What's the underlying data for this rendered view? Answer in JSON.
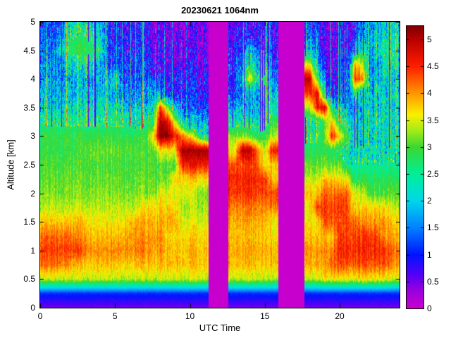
{
  "figure": {
    "title": "20230621 1064nm"
  },
  "chart_data": {
    "type": "heatmap",
    "title": "20230621 1064nm",
    "xlabel": "UTC Time",
    "ylabel": "Altitude [km]",
    "x_range": [
      0,
      24
    ],
    "y_range": [
      0,
      5
    ],
    "x_ticks": [
      0,
      5,
      10,
      15,
      20
    ],
    "x_tick_labels": [
      "0",
      "5",
      "10",
      "15",
      "20"
    ],
    "y_ticks": [
      0,
      0.5,
      1,
      1.5,
      2,
      2.5,
      3,
      3.5,
      4,
      4.5,
      5
    ],
    "y_tick_labels": [
      "0",
      "0.5",
      "1",
      "1.5",
      "2",
      "2.5",
      "3",
      "3.5",
      "4",
      "4.5",
      "5"
    ],
    "colorbar": {
      "range": [
        0,
        5.25
      ],
      "ticks": [
        0,
        0.5,
        1,
        1.5,
        2,
        2.5,
        3,
        3.5,
        4,
        4.5,
        5
      ],
      "tick_labels": [
        "0",
        "0.5",
        "1",
        "1.5",
        "2",
        "2.5",
        "3",
        "3.5",
        "4",
        "4.5",
        "5"
      ],
      "position": "right"
    },
    "colormap": {
      "stops": [
        [
          0.0,
          [
            200,
            0,
            205
          ]
        ],
        [
          0.3,
          [
            160,
            0,
            220
          ]
        ],
        [
          0.6,
          [
            90,
            0,
            245
          ]
        ],
        [
          1.0,
          [
            0,
            20,
            255
          ]
        ],
        [
          1.5,
          [
            0,
            130,
            255
          ]
        ],
        [
          2.0,
          [
            0,
            215,
            235
          ]
        ],
        [
          2.5,
          [
            0,
            240,
            150
          ]
        ],
        [
          3.0,
          [
            60,
            215,
            50
          ]
        ],
        [
          3.3,
          [
            160,
            235,
            25
          ]
        ],
        [
          3.6,
          [
            250,
            240,
            0
          ]
        ],
        [
          4.0,
          [
            255,
            150,
            0
          ]
        ],
        [
          4.5,
          [
            255,
            30,
            0
          ]
        ],
        [
          5.0,
          [
            185,
            0,
            0
          ]
        ],
        [
          5.25,
          [
            125,
            0,
            0
          ]
        ]
      ]
    },
    "data_gaps_utc": [
      [
        11.25,
        12.55
      ],
      [
        15.9,
        17.65
      ]
    ],
    "grid": {
      "x_utc": [
        0,
        0.5,
        1,
        1.5,
        2,
        2.5,
        3,
        3.5,
        4,
        4.5,
        5,
        5.5,
        6,
        6.5,
        7,
        7.5,
        8,
        8.5,
        9,
        9.5,
        10,
        10.5,
        11,
        11.5,
        12,
        12.5,
        13,
        13.5,
        14,
        14.5,
        15,
        15.5,
        16,
        16.5,
        17,
        17.5,
        18,
        18.5,
        19,
        19.5,
        20,
        20.5,
        21,
        21.5,
        22,
        22.5,
        23,
        23.5,
        24
      ],
      "altitude_km": [
        0,
        0.25,
        0.5,
        0.75,
        1,
        1.25,
        1.5,
        1.75,
        2,
        2.25,
        2.5,
        2.75,
        3,
        3.25,
        3.5,
        3.75,
        4,
        4.25,
        4.5,
        4.75,
        5
      ],
      "values": [
        [
          0.5,
          0.5,
          0.5,
          0.5,
          0.5,
          0.5,
          0.5,
          0.5,
          0.5,
          0.5,
          0.5,
          0.5,
          0.5,
          0.5,
          0.5,
          0.5,
          0.5,
          0.5,
          0.5,
          0.5,
          0.5,
          0.5,
          0.5,
          0,
          0,
          0,
          0.5,
          0.5,
          0.5,
          0.5,
          0.5,
          0.5,
          0,
          0,
          0,
          0,
          0.5,
          0.5,
          0.5,
          0.5,
          0.5,
          0.5,
          0.5,
          0.5,
          0.5,
          0.5,
          0.5,
          0.5,
          0.5
        ],
        [
          1.1,
          1.1,
          1.1,
          1.1,
          1.1,
          1.1,
          1.1,
          1.1,
          1.1,
          1.1,
          1.1,
          1.1,
          1.1,
          1.1,
          1.1,
          1.1,
          1.1,
          1.1,
          1.1,
          1.1,
          1.1,
          1.1,
          1.1,
          0,
          0,
          0,
          1.1,
          1.1,
          1.1,
          1.1,
          1.1,
          1.1,
          0,
          0,
          0,
          0,
          1.1,
          1.1,
          1.1,
          1.1,
          1.1,
          1.1,
          1.1,
          1.1,
          1.1,
          1.1,
          1.1,
          1.1,
          1.1
        ],
        [
          3.4,
          3.4,
          3.4,
          3.4,
          3.4,
          3.4,
          3.4,
          3.4,
          3.4,
          3.4,
          3.4,
          3.4,
          3.4,
          3.4,
          3.4,
          3.4,
          3.4,
          3.4,
          3.4,
          3.4,
          3.4,
          3.4,
          3.4,
          0,
          0,
          0,
          3.4,
          3.4,
          3.4,
          3.4,
          3.4,
          3.4,
          0,
          0,
          0,
          0,
          3.4,
          3.4,
          3.6,
          3.6,
          3.6,
          3.6,
          3.6,
          3.6,
          3.6,
          3.6,
          3.6,
          3.4,
          3.4
        ],
        [
          4.2,
          4.2,
          4.2,
          4.1,
          4.0,
          3.8,
          3.8,
          3.8,
          3.8,
          3.8,
          3.8,
          3.8,
          3.8,
          3.8,
          3.8,
          3.8,
          3.8,
          3.8,
          3.8,
          3.8,
          3.8,
          3.8,
          3.8,
          0,
          0,
          0,
          3.8,
          3.8,
          3.8,
          3.8,
          3.8,
          3.8,
          0,
          0,
          0,
          0,
          3.9,
          3.9,
          3.9,
          4.3,
          4.3,
          4.3,
          4.3,
          4.3,
          4.3,
          4.3,
          4.3,
          4.0,
          3.9
        ],
        [
          4.4,
          4.4,
          4.4,
          4.4,
          4.4,
          4.4,
          4.2,
          4.0,
          4.0,
          4.0,
          4.1,
          4.1,
          4.1,
          4.1,
          4.1,
          4.0,
          4.0,
          3.8,
          3.8,
          3.8,
          3.8,
          3.8,
          3.8,
          0,
          0,
          0,
          3.9,
          3.9,
          3.9,
          3.9,
          3.9,
          3.9,
          0,
          0,
          0,
          0,
          4.0,
          4.0,
          4.0,
          4.1,
          4.5,
          4.5,
          4.5,
          4.5,
          4.5,
          4.5,
          4.5,
          4.2,
          4.0
        ],
        [
          4.2,
          4.2,
          4.2,
          4.2,
          4.2,
          4.0,
          4.0,
          3.8,
          3.8,
          3.8,
          3.8,
          3.9,
          4.0,
          4.0,
          4.0,
          4.0,
          4.0,
          3.7,
          3.7,
          3.7,
          3.7,
          3.7,
          3.7,
          0,
          0,
          0,
          3.8,
          3.8,
          3.8,
          3.8,
          3.8,
          3.7,
          0,
          0,
          0,
          0,
          3.8,
          3.8,
          3.8,
          3.8,
          4.4,
          4.4,
          4.4,
          4.4,
          4.4,
          4.4,
          4.0,
          3.9,
          3.8
        ],
        [
          3.8,
          3.8,
          3.8,
          3.8,
          3.8,
          3.8,
          3.8,
          3.6,
          3.6,
          3.6,
          3.6,
          3.6,
          3.9,
          3.9,
          3.9,
          3.9,
          3.9,
          3.9,
          3.9,
          3.5,
          3.5,
          3.5,
          3.5,
          0,
          0,
          0,
          3.9,
          3.9,
          3.9,
          3.9,
          3.9,
          3.6,
          0,
          0,
          0,
          0,
          3.6,
          3.6,
          4.3,
          4.3,
          4.3,
          4.3,
          4.3,
          4.0,
          4.0,
          4.0,
          4.0,
          3.7,
          3.7
        ],
        [
          3.4,
          3.4,
          3.4,
          3.4,
          3.4,
          3.4,
          3.4,
          3.4,
          3.4,
          3.4,
          3.4,
          3.4,
          3.4,
          3.4,
          3.7,
          3.7,
          3.7,
          3.7,
          3.7,
          3.3,
          3.3,
          3.3,
          3.3,
          0,
          0,
          0,
          4.1,
          4.1,
          4.1,
          4.1,
          4.1,
          4.1,
          0,
          0,
          0,
          0,
          3.5,
          4.4,
          4.4,
          4.4,
          4.4,
          4.4,
          3.7,
          3.7,
          3.7,
          3.7,
          3.7,
          3.4,
          3.4
        ],
        [
          3.2,
          3.2,
          3.2,
          3.2,
          3.2,
          3.2,
          3.2,
          3.2,
          3.2,
          3.2,
          3.2,
          3.2,
          3.2,
          3.2,
          3.2,
          3.2,
          3.5,
          3.5,
          3.5,
          3.5,
          3.5,
          3.2,
          3.2,
          0,
          0,
          0,
          4.4,
          4.4,
          4.4,
          4.4,
          4.4,
          4.4,
          0,
          0,
          0,
          0,
          3.8,
          3.8,
          4.2,
          4.2,
          4.2,
          4.2,
          3.6,
          3.4,
          3.0,
          3.0,
          3.0,
          3.0,
          3.0
        ],
        [
          3.1,
          3.1,
          3.1,
          3.1,
          3.1,
          3.1,
          3.1,
          3.1,
          3.1,
          3.1,
          3.1,
          3.1,
          3.1,
          3.1,
          3.1,
          3.1,
          3.1,
          3.1,
          3.7,
          3.7,
          3.7,
          3.7,
          3.7,
          0,
          0,
          0,
          4.5,
          4.5,
          4.5,
          4.5,
          4.5,
          3.8,
          0,
          0,
          0,
          0,
          3.4,
          3.4,
          3.8,
          3.8,
          3.6,
          3.6,
          2.8,
          2.8,
          2.8,
          2.8,
          2.8,
          2.8,
          2.8
        ],
        [
          3.0,
          3.0,
          3.0,
          3.0,
          3.0,
          3.0,
          3.0,
          3.0,
          3.0,
          3.0,
          3.0,
          3.0,
          3.0,
          3.0,
          3.0,
          3.0,
          3.0,
          3.0,
          3.0,
          4.6,
          4.6,
          4.6,
          4.6,
          0,
          0,
          0,
          4.3,
          4.3,
          4.3,
          4.3,
          3.6,
          3.8,
          0,
          0,
          0,
          0,
          3.1,
          3.1,
          3.1,
          3.1,
          3.1,
          2.5,
          2.5,
          2.5,
          2.5,
          2.5,
          2.5,
          2.5,
          2.5
        ],
        [
          2.9,
          2.9,
          2.9,
          2.9,
          2.9,
          2.9,
          3.1,
          3.1,
          3.1,
          3.1,
          3.1,
          3.1,
          3.1,
          3.0,
          3.0,
          3.0,
          3.6,
          3.6,
          3.6,
          5.1,
          5.1,
          5.1,
          5.1,
          0,
          0,
          0,
          3.6,
          5.0,
          5.0,
          4.2,
          3.4,
          4.6,
          0,
          0,
          0,
          0,
          2.8,
          2.8,
          2.8,
          2.8,
          2.6,
          2.3,
          2.3,
          2.3,
          2.3,
          2.3,
          2.3,
          2.3,
          2.3
        ],
        [
          2.9,
          2.9,
          2.9,
          2.9,
          2.9,
          2.9,
          2.9,
          2.9,
          2.9,
          2.9,
          2.9,
          2.9,
          2.9,
          2.9,
          2.9,
          3.5,
          5.2,
          5.2,
          4.6,
          4.2,
          3.6,
          3.0,
          2.4,
          0,
          0,
          0,
          3.2,
          3.2,
          3.0,
          2.8,
          2.9,
          3.4,
          0,
          0,
          0,
          0,
          2.6,
          2.6,
          3.0,
          4.6,
          3.6,
          3.0,
          2.2,
          2.2,
          2.2,
          2.2,
          2.2,
          2.2,
          2.2
        ],
        [
          2.6,
          2.6,
          2.6,
          2.6,
          2.6,
          2.6,
          2.6,
          2.6,
          2.6,
          2.6,
          2.6,
          2.6,
          2.6,
          2.4,
          2.6,
          2.6,
          5.0,
          4.8,
          3.5,
          2.2,
          1.8,
          1.8,
          1.8,
          0,
          0,
          0,
          2.4,
          2.4,
          2.4,
          2.4,
          2.4,
          3.0,
          0,
          0,
          0,
          0,
          2.4,
          2.4,
          3.0,
          3.8,
          2.6,
          2.2,
          2.0,
          2.0,
          2.2,
          2.2,
          2.4,
          2.2,
          2.2
        ],
        [
          2.2,
          2.2,
          2.2,
          2.2,
          2.2,
          2.2,
          2.2,
          2.2,
          2.2,
          2.2,
          2.2,
          2.2,
          2.0,
          2.0,
          1.9,
          2.2,
          4.4,
          3.3,
          2.0,
          1.2,
          1.2,
          1.2,
          1.2,
          0,
          0,
          0,
          1.8,
          1.8,
          1.8,
          1.8,
          2.2,
          2.4,
          0,
          0,
          0,
          0,
          3.3,
          4.6,
          4.8,
          2.6,
          1.6,
          1.6,
          1.8,
          2.0,
          2.0,
          2.0,
          2.3,
          2.0,
          2.0
        ],
        [
          1.9,
          1.9,
          1.9,
          1.9,
          1.9,
          1.9,
          1.9,
          1.9,
          1.9,
          1.9,
          1.9,
          1.6,
          1.6,
          1.6,
          1.6,
          1.7,
          1.8,
          0.9,
          0.9,
          0.9,
          0.9,
          0.9,
          0.9,
          0,
          0,
          0,
          1.2,
          1.4,
          1.8,
          1.6,
          2.6,
          2.0,
          0,
          0,
          0,
          0,
          4.4,
          4.8,
          2.2,
          1.0,
          1.0,
          1.0,
          3.0,
          2.0,
          2.1,
          2.1,
          2.1,
          2.1,
          2.1
        ],
        [
          1.8,
          1.8,
          1.8,
          1.8,
          1.8,
          1.8,
          1.8,
          1.8,
          1.8,
          1.8,
          2.4,
          1.3,
          1.3,
          1.3,
          1.3,
          1.3,
          0.8,
          0.8,
          0.8,
          0.8,
          0.8,
          0.8,
          0.8,
          0,
          0,
          0,
          1.0,
          2.0,
          3.6,
          2.6,
          2.8,
          1.6,
          0,
          0,
          0,
          0,
          5.0,
          3.0,
          1.5,
          0.8,
          0.8,
          0.8,
          4.4,
          4.2,
          1.8,
          1.8,
          2.2,
          1.8,
          1.8
        ],
        [
          1.7,
          1.7,
          1.7,
          1.7,
          2.2,
          2.2,
          2.4,
          2.2,
          1.9,
          1.2,
          1.2,
          1.2,
          1.2,
          1.2,
          1.2,
          0.6,
          0.6,
          0.6,
          0.6,
          0.6,
          0.6,
          0.6,
          0.6,
          0,
          0,
          0,
          1.2,
          1.2,
          2.8,
          1.8,
          2.4,
          1.2,
          0,
          0,
          0,
          0,
          3.6,
          2.0,
          0.7,
          0.7,
          0.7,
          0.7,
          4.0,
          3.4,
          1.6,
          1.6,
          2.6,
          2.4,
          2.0
        ],
        [
          1.5,
          1.5,
          1.5,
          2.4,
          2.8,
          2.9,
          2.9,
          2.8,
          2.5,
          1.1,
          1.1,
          1.1,
          1.1,
          1.1,
          1.1,
          0.5,
          0.5,
          0.5,
          0.5,
          0.5,
          0.5,
          0.5,
          0.5,
          0,
          0,
          0,
          1.0,
          1.0,
          2.0,
          1.4,
          1.6,
          1.0,
          0,
          0,
          0,
          0,
          2.0,
          1.6,
          0.6,
          0.6,
          0.6,
          0.6,
          2.0,
          2.6,
          1.8,
          2.2,
          2.6,
          2.5,
          2.2
        ],
        [
          1.3,
          1.3,
          1.3,
          1.8,
          2.6,
          2.7,
          2.7,
          2.5,
          2.2,
          1.0,
          1.0,
          1.0,
          1.0,
          1.0,
          1.0,
          0.4,
          0.4,
          0.4,
          0.4,
          0.4,
          0.4,
          0.4,
          0.4,
          0,
          0,
          0,
          0.8,
          0.8,
          0.8,
          0.8,
          1.8,
          0.9,
          0,
          0,
          0,
          0,
          1.4,
          1.2,
          0.5,
          0.5,
          0.5,
          0.5,
          1.2,
          1.6,
          1.7,
          1.9,
          2.4,
          2.3,
          2.0
        ],
        [
          1.1,
          1.1,
          1.1,
          1.5,
          2.3,
          2.4,
          2.3,
          2.1,
          1.9,
          0.9,
          0.9,
          0.9,
          0.9,
          0.9,
          0.9,
          0.35,
          0.35,
          0.35,
          0.35,
          0.35,
          0.35,
          0.35,
          0.35,
          0,
          0,
          0,
          0.7,
          0.7,
          0.7,
          0.7,
          1.6,
          0.8,
          0,
          0,
          0,
          0,
          1.2,
          1.1,
          0.45,
          0.45,
          0.45,
          0.45,
          1.0,
          1.4,
          1.6,
          1.7,
          2.2,
          2.1,
          1.8
        ]
      ]
    }
  }
}
